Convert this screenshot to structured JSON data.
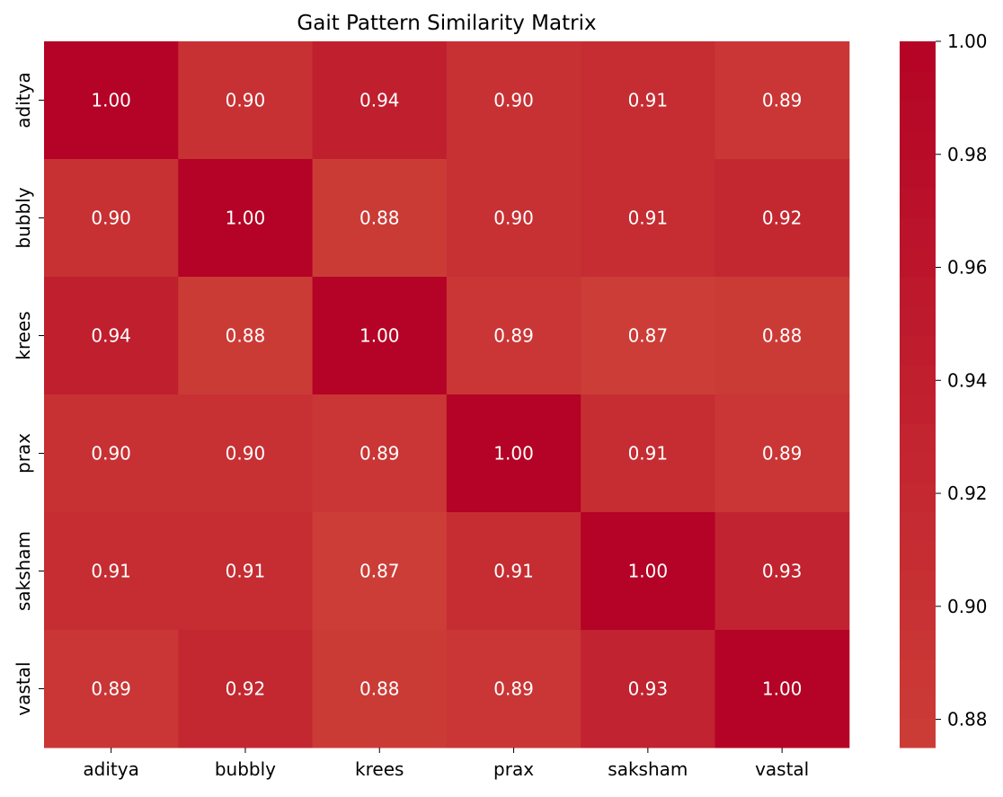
{
  "chart_data": {
    "type": "heatmap",
    "title": "Gait Pattern Similarity Matrix",
    "x_categories": [
      "aditya",
      "bubbly",
      "krees",
      "prax",
      "saksham",
      "vastal"
    ],
    "y_categories": [
      "aditya",
      "bubbly",
      "krees",
      "prax",
      "saksham",
      "vastal"
    ],
    "values": [
      [
        1.0,
        0.9,
        0.94,
        0.9,
        0.91,
        0.89
      ],
      [
        0.9,
        1.0,
        0.88,
        0.9,
        0.91,
        0.92
      ],
      [
        0.94,
        0.88,
        1.0,
        0.89,
        0.87,
        0.88
      ],
      [
        0.9,
        0.9,
        0.89,
        1.0,
        0.91,
        0.89
      ],
      [
        0.91,
        0.91,
        0.87,
        0.91,
        1.0,
        0.93
      ],
      [
        0.89,
        0.92,
        0.88,
        0.89,
        0.93,
        1.0
      ]
    ],
    "value_format": "0.00",
    "colorbar": {
      "range": [
        0.875,
        1.0
      ],
      "ticks": [
        0.88,
        0.9,
        0.92,
        0.94,
        0.96,
        0.98,
        1.0
      ],
      "tick_labels": [
        "0.88",
        "0.90",
        "0.92",
        "0.94",
        "0.96",
        "0.98",
        "1.00"
      ],
      "color_low": "#cc3d37",
      "color_high": "#b40326"
    }
  }
}
